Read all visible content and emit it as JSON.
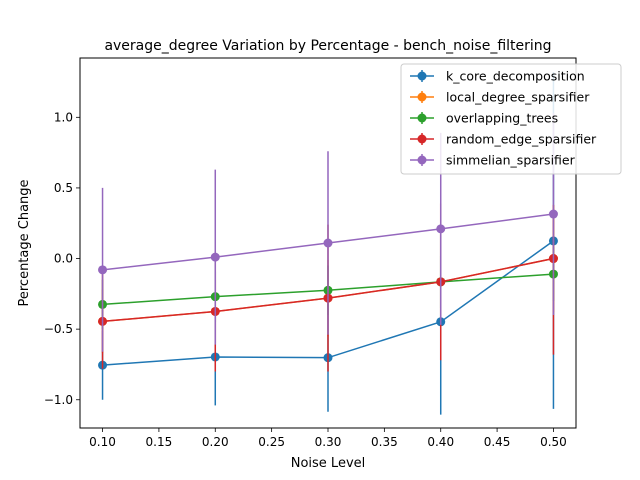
{
  "chart_data": {
    "type": "line",
    "title": "average_degree Variation by Percentage - bench_noise_filtering",
    "xlabel": "Noise Level",
    "ylabel": "Percentage Change",
    "xlim": [
      0.08,
      0.52
    ],
    "ylim": [
      -1.2,
      1.42
    ],
    "xticks": [
      0.1,
      0.15,
      0.2,
      0.25,
      0.3,
      0.35,
      0.4,
      0.45,
      0.5
    ],
    "xtick_labels": [
      "0.10",
      "0.15",
      "0.20",
      "0.25",
      "0.30",
      "0.35",
      "0.40",
      "0.45",
      "0.50"
    ],
    "yticks": [
      -1.0,
      -0.5,
      0.0,
      0.5,
      1.0
    ],
    "ytick_labels": [
      "−1.0",
      "−0.5",
      "0.0",
      "0.5",
      "1.0"
    ],
    "grid": false,
    "legend_position": "top-right",
    "x": [
      0.1,
      0.2,
      0.3,
      0.4,
      0.5
    ],
    "series": [
      {
        "name": "k_core_decomposition",
        "color": "#1f77b4",
        "values": [
          -0.755,
          -0.697,
          -0.702,
          -0.448,
          0.125
        ],
        "err_low": [
          -1.0,
          -1.04,
          -1.085,
          -1.105,
          -1.065
        ],
        "err_high": [
          -0.51,
          -0.35,
          -0.32,
          0.2,
          1.32
        ]
      },
      {
        "name": "local_degree_sparsifier",
        "color": "#ff7f0e",
        "values": [
          -0.445,
          -0.375,
          -0.28,
          -0.165,
          0.0
        ],
        "err_low": [
          -0.67,
          -0.6,
          -0.55,
          -0.5,
          -0.38
        ],
        "err_high": [
          -0.22,
          -0.15,
          -0.01,
          0.17,
          0.38
        ]
      },
      {
        "name": "overlapping_trees",
        "color": "#2ca02c",
        "values": [
          -0.325,
          -0.27,
          -0.225,
          -0.165,
          -0.11
        ],
        "err_low": [
          -0.5,
          -0.45,
          -0.4,
          -0.35,
          -0.3
        ],
        "err_high": [
          -0.15,
          -0.09,
          -0.05,
          0.02,
          0.08
        ]
      },
      {
        "name": "random_edge_sparsifier",
        "color": "#d62728",
        "values": [
          -0.445,
          -0.375,
          -0.28,
          -0.165,
          0.0
        ],
        "err_low": [
          -0.78,
          -0.8,
          -0.8,
          -0.72,
          -0.68
        ],
        "err_high": [
          -0.11,
          0.05,
          0.24,
          0.39,
          0.38
        ]
      },
      {
        "name": "simmelian_sparsifier",
        "color": "#9467bd",
        "values": [
          -0.08,
          0.01,
          0.11,
          0.21,
          0.315
        ],
        "err_low": [
          -0.66,
          -0.61,
          -0.54,
          -0.47,
          -0.4
        ],
        "err_high": [
          0.5,
          0.63,
          0.76,
          0.89,
          1.03
        ]
      }
    ]
  }
}
